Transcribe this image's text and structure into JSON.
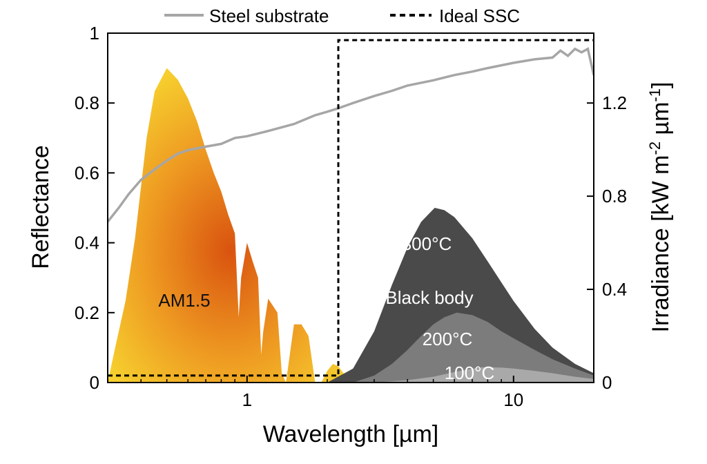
{
  "chart_data": {
    "type": "line",
    "xlabel": "Wavelength [µm]",
    "ylabel": "Reflectance",
    "y2label_main": "Irradiance [kW m",
    "y2label_sup1": "-2",
    "y2label_mid": " µm",
    "y2label_sup2": "-1",
    "y2label_end": "]",
    "x_scale": "log",
    "xlim": [
      0.3,
      20
    ],
    "ylim": [
      0,
      1
    ],
    "y2lim": [
      0,
      1.5
    ],
    "x_ticks": [
      {
        "value": 1,
        "label": "1"
      },
      {
        "value": 10,
        "label": "10"
      }
    ],
    "y_ticks": [
      {
        "value": 0,
        "label": "0"
      },
      {
        "value": 0.2,
        "label": "0.2"
      },
      {
        "value": 0.4,
        "label": "0.4"
      },
      {
        "value": 0.6,
        "label": "0.6"
      },
      {
        "value": 0.8,
        "label": "0.8"
      },
      {
        "value": 1,
        "label": "1"
      }
    ],
    "y2_ticks": [
      {
        "value": 0,
        "label": "0"
      },
      {
        "value": 0.4,
        "label": "0.4"
      },
      {
        "value": 0.8,
        "label": "0.8"
      },
      {
        "value": 1.2,
        "label": "1.2"
      }
    ],
    "legend_position": "top",
    "legend": [
      {
        "label": "Steel substrate",
        "color": "#a6a6a6",
        "style": "solid"
      },
      {
        "label": "Ideal SSC",
        "color": "#000000",
        "style": "dashed"
      }
    ],
    "series": [
      {
        "name": "Steel substrate",
        "axis": "left",
        "color": "#a6a6a6",
        "x": [
          0.3,
          0.33,
          0.36,
          0.4,
          0.45,
          0.5,
          0.55,
          0.6,
          0.7,
          0.8,
          0.9,
          1.0,
          1.2,
          1.5,
          1.8,
          2.0,
          2.2,
          2.5,
          3.0,
          3.5,
          4.0,
          5.0,
          6.0,
          7.0,
          8.0,
          10.0,
          12.0,
          14.0,
          15.0,
          16.0,
          17.0,
          18.0,
          19.0,
          20.0
        ],
        "y": [
          0.46,
          0.5,
          0.54,
          0.58,
          0.61,
          0.635,
          0.655,
          0.665,
          0.675,
          0.683,
          0.7,
          0.705,
          0.72,
          0.74,
          0.765,
          0.775,
          0.785,
          0.8,
          0.82,
          0.835,
          0.85,
          0.865,
          0.88,
          0.89,
          0.9,
          0.915,
          0.925,
          0.93,
          0.95,
          0.935,
          0.955,
          0.945,
          0.955,
          0.88
        ]
      },
      {
        "name": "Ideal SSC",
        "axis": "left",
        "color": "#000000",
        "x": [
          0.3,
          2.2,
          2.2,
          20
        ],
        "y": [
          0.02,
          0.02,
          0.98,
          0.98
        ]
      },
      {
        "name": "AM1.5",
        "axis": "right",
        "type": "area",
        "x": [
          0.3,
          0.32,
          0.35,
          0.38,
          0.42,
          0.45,
          0.5,
          0.55,
          0.6,
          0.65,
          0.7,
          0.75,
          0.8,
          0.85,
          0.9,
          0.93,
          0.95,
          1.0,
          1.05,
          1.1,
          1.13,
          1.15,
          1.2,
          1.25,
          1.3,
          1.35,
          1.4,
          1.5,
          1.6,
          1.7,
          1.75,
          1.8,
          1.9,
          2.0,
          2.1,
          2.2,
          2.3,
          2.5
        ],
        "y": [
          0.0,
          0.15,
          0.35,
          0.62,
          1.05,
          1.25,
          1.35,
          1.3,
          1.22,
          1.12,
          1.0,
          0.9,
          0.82,
          0.72,
          0.64,
          0.28,
          0.45,
          0.6,
          0.52,
          0.45,
          0.12,
          0.22,
          0.36,
          0.33,
          0.3,
          0.04,
          0.0,
          0.25,
          0.25,
          0.2,
          0.1,
          0.0,
          0.0,
          0.05,
          0.08,
          0.07,
          0.04,
          0.0
        ]
      },
      {
        "name": "300°C",
        "axis": "right",
        "type": "area",
        "x": [
          2.0,
          2.5,
          3.0,
          3.5,
          4.0,
          4.5,
          5.06,
          5.5,
          6.0,
          7.0,
          8.0,
          9.0,
          10.0,
          12.0,
          14.0,
          17.0,
          20.0
        ],
        "y": [
          0.0,
          0.06,
          0.22,
          0.42,
          0.58,
          0.69,
          0.75,
          0.74,
          0.71,
          0.62,
          0.52,
          0.43,
          0.35,
          0.23,
          0.15,
          0.08,
          0.04
        ]
      },
      {
        "name": "200°C",
        "axis": "right",
        "type": "area",
        "x": [
          2.5,
          3.0,
          3.5,
          4.0,
          4.5,
          5.0,
          5.5,
          6.12,
          7.0,
          8.0,
          9.0,
          10.0,
          12.0,
          14.0,
          17.0,
          20.0
        ],
        "y": [
          0.0,
          0.03,
          0.08,
          0.14,
          0.2,
          0.25,
          0.28,
          0.3,
          0.29,
          0.26,
          0.22,
          0.19,
          0.14,
          0.1,
          0.06,
          0.03
        ]
      },
      {
        "name": "100°C",
        "axis": "right",
        "type": "area",
        "x": [
          3.0,
          4.0,
          5.0,
          6.0,
          7.0,
          7.77,
          9.0,
          10.0,
          12.0,
          14.0,
          17.0,
          20.0
        ],
        "y": [
          0.0,
          0.01,
          0.025,
          0.045,
          0.06,
          0.066,
          0.064,
          0.06,
          0.05,
          0.04,
          0.025,
          0.015
        ]
      }
    ],
    "annotations": {
      "am15": "AM1.5",
      "t300": "300°C",
      "blackbody": "Black body",
      "t200": "200°C",
      "t100": "100°C"
    }
  }
}
